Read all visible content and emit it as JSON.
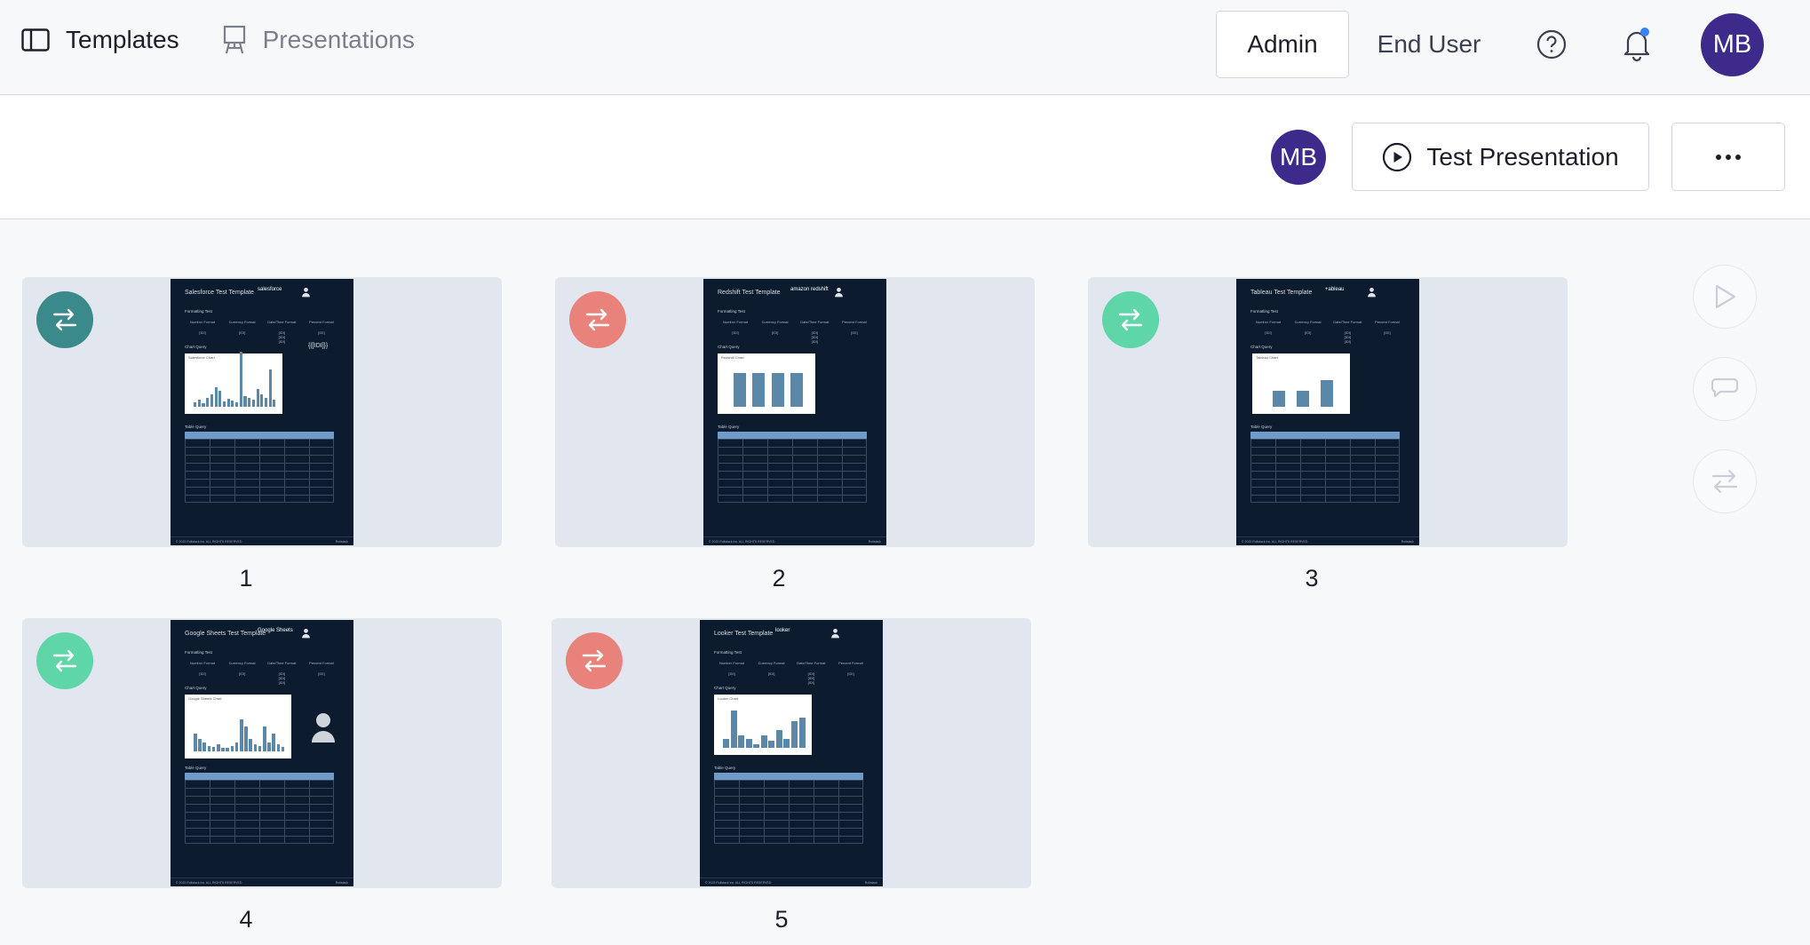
{
  "nav": {
    "templates_label": "Templates",
    "presentations_label": "Presentations",
    "admin_label": "Admin",
    "end_user_label": "End User",
    "avatar_initials": "MB",
    "help_icon": "help-circle-icon",
    "bell_icon": "bell-icon",
    "notification_dot_color": "#3b82f6"
  },
  "toolbar": {
    "avatar_initials": "MB",
    "test_presentation_label": "Test Presentation",
    "more_label": "•••"
  },
  "colors": {
    "teal": "#3a8a8c",
    "coral": "#e9827a",
    "mint": "#5ed6a8",
    "avatar": "#3d2a8a"
  },
  "cards": [
    {
      "number": "1",
      "badge": "teal",
      "title": "Salesforce Test Template",
      "logo": "salesforce",
      "chart_label": "Salesforce Chart",
      "extra": "{{[IDI]}}"
    },
    {
      "number": "2",
      "badge": "coral",
      "title": "Redshift Test Template",
      "logo": "amazon redshift",
      "chart_label": "Redshift Chart"
    },
    {
      "number": "3",
      "badge": "mint",
      "title": "Tableau Test Template",
      "logo": "+ableau",
      "chart_label": "Tableau Chart"
    },
    {
      "number": "4",
      "badge": "mint",
      "title": "Google Sheets Test Template",
      "logo": "Google Sheets",
      "chart_label": "Google Sheets Chart"
    },
    {
      "number": "5",
      "badge": "coral",
      "title": "Looker Test Template",
      "logo": "looker",
      "chart_label": "Looker Chart"
    }
  ],
  "slide_common": {
    "formatting_test": "Formatting Test",
    "chart_query": "Chart Query",
    "table_query": "Table Query",
    "col1": "Number Format",
    "col2": "Currency Format",
    "col3": "Date/Time Format",
    "col4": "Percent Format",
    "footer_left": "© 2023 Rollstack Inc. ALL RIGHTS RESERVED",
    "footer_right": "Rollstack"
  }
}
